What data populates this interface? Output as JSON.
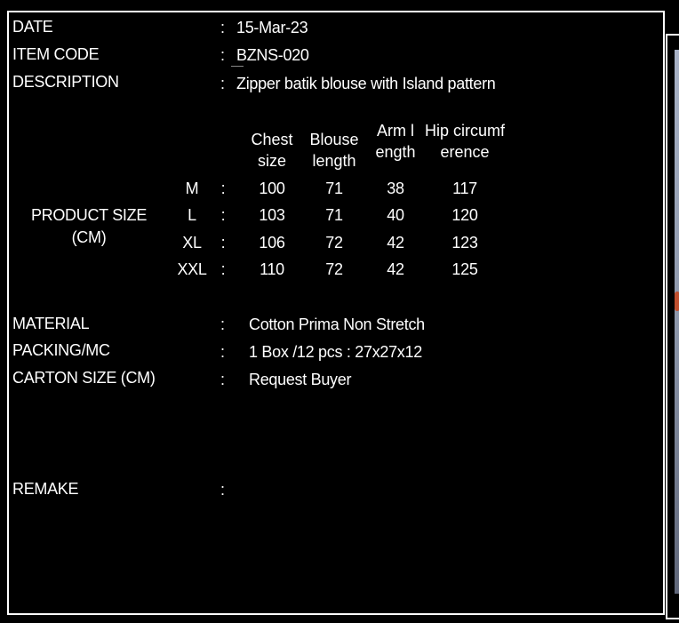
{
  "header": {
    "date_label": "DATE",
    "date_value": "15-Mar-23",
    "item_code_label": "ITEM CODE",
    "item_code_value": "BZNS-020",
    "description_label": "DESCRIPTION",
    "description_value": "Zipper batik blouse with Island pattern",
    "separator": ":"
  },
  "product_size": {
    "label_line1": "PRODUCT SIZE",
    "label_line2": "(CM)",
    "columns": [
      "Chest size",
      "Blouse length",
      "Arm length",
      "Hip circumference"
    ],
    "rows": [
      {
        "size": "M",
        "values": [
          "100",
          "71",
          "38",
          "117"
        ]
      },
      {
        "size": "L",
        "values": [
          "103",
          "71",
          "40",
          "120"
        ]
      },
      {
        "size": "XL",
        "values": [
          "106",
          "72",
          "42",
          "123"
        ]
      },
      {
        "size": "XXL",
        "values": [
          "110",
          "72",
          "42",
          "125"
        ]
      }
    ]
  },
  "details": {
    "material_label": "MATERIAL",
    "material_value": "Cotton Prima Non Stretch",
    "packing_label": "PACKING/MC",
    "packing_value": "1 Box /12 pcs : 27x27x12",
    "carton_label": "CARTON SIZE (CM)",
    "carton_value": "Request Buyer",
    "remake_label": "REMAKE"
  }
}
